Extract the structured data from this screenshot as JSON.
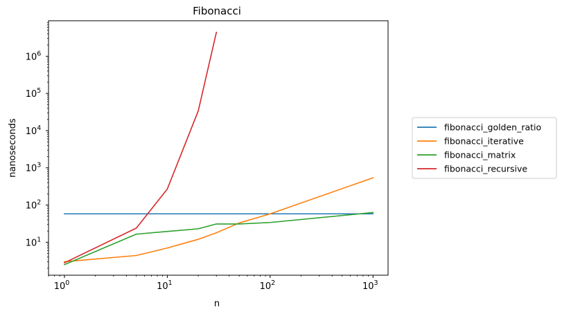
{
  "chart_data": {
    "type": "line",
    "title": "Fibonacci",
    "xlabel": "n",
    "ylabel": "nanoseconds",
    "x_scale": "log",
    "y_scale": "log",
    "xlim": [
      0.7,
      1400
    ],
    "ylim": [
      1.3,
      9000000
    ],
    "grid": false,
    "legend_position": "outside-right",
    "x_ticks": [
      {
        "value": 1,
        "base": "10",
        "exp": "0"
      },
      {
        "value": 10,
        "base": "10",
        "exp": "1"
      },
      {
        "value": 100,
        "base": "10",
        "exp": "2"
      },
      {
        "value": 1000,
        "base": "10",
        "exp": "3"
      }
    ],
    "y_ticks": [
      {
        "value": 10,
        "base": "10",
        "exp": "1"
      },
      {
        "value": 100,
        "base": "10",
        "exp": "2"
      },
      {
        "value": 1000,
        "base": "10",
        "exp": "3"
      },
      {
        "value": 10000,
        "base": "10",
        "exp": "4"
      },
      {
        "value": 100000,
        "base": "10",
        "exp": "5"
      },
      {
        "value": 1000000,
        "base": "10",
        "exp": "6"
      }
    ],
    "series": [
      {
        "name": "fibonacci_golden_ratio",
        "color": "#1f77b4",
        "x": [
          1,
          5,
          10,
          20,
          30,
          50,
          100,
          1000
        ],
        "y": [
          58,
          58,
          58,
          58,
          58,
          58,
          58,
          58
        ]
      },
      {
        "name": "fibonacci_iterative",
        "color": "#ff7f0e",
        "x": [
          1,
          5,
          10,
          20,
          30,
          50,
          100,
          1000
        ],
        "y": [
          3.0,
          4.4,
          7.0,
          12,
          18,
          33,
          58,
          540
        ]
      },
      {
        "name": "fibonacci_matrix",
        "color": "#2ca02c",
        "x": [
          1,
          5,
          10,
          20,
          30,
          50,
          100,
          1000
        ],
        "y": [
          2.5,
          16.5,
          19.5,
          23,
          31,
          31,
          34,
          63
        ]
      },
      {
        "name": "fibonacci_recursive",
        "color": "#d62728",
        "x": [
          1,
          5,
          10,
          20,
          30
        ],
        "y": [
          2.8,
          24,
          270,
          34000,
          4400000
        ]
      }
    ]
  }
}
